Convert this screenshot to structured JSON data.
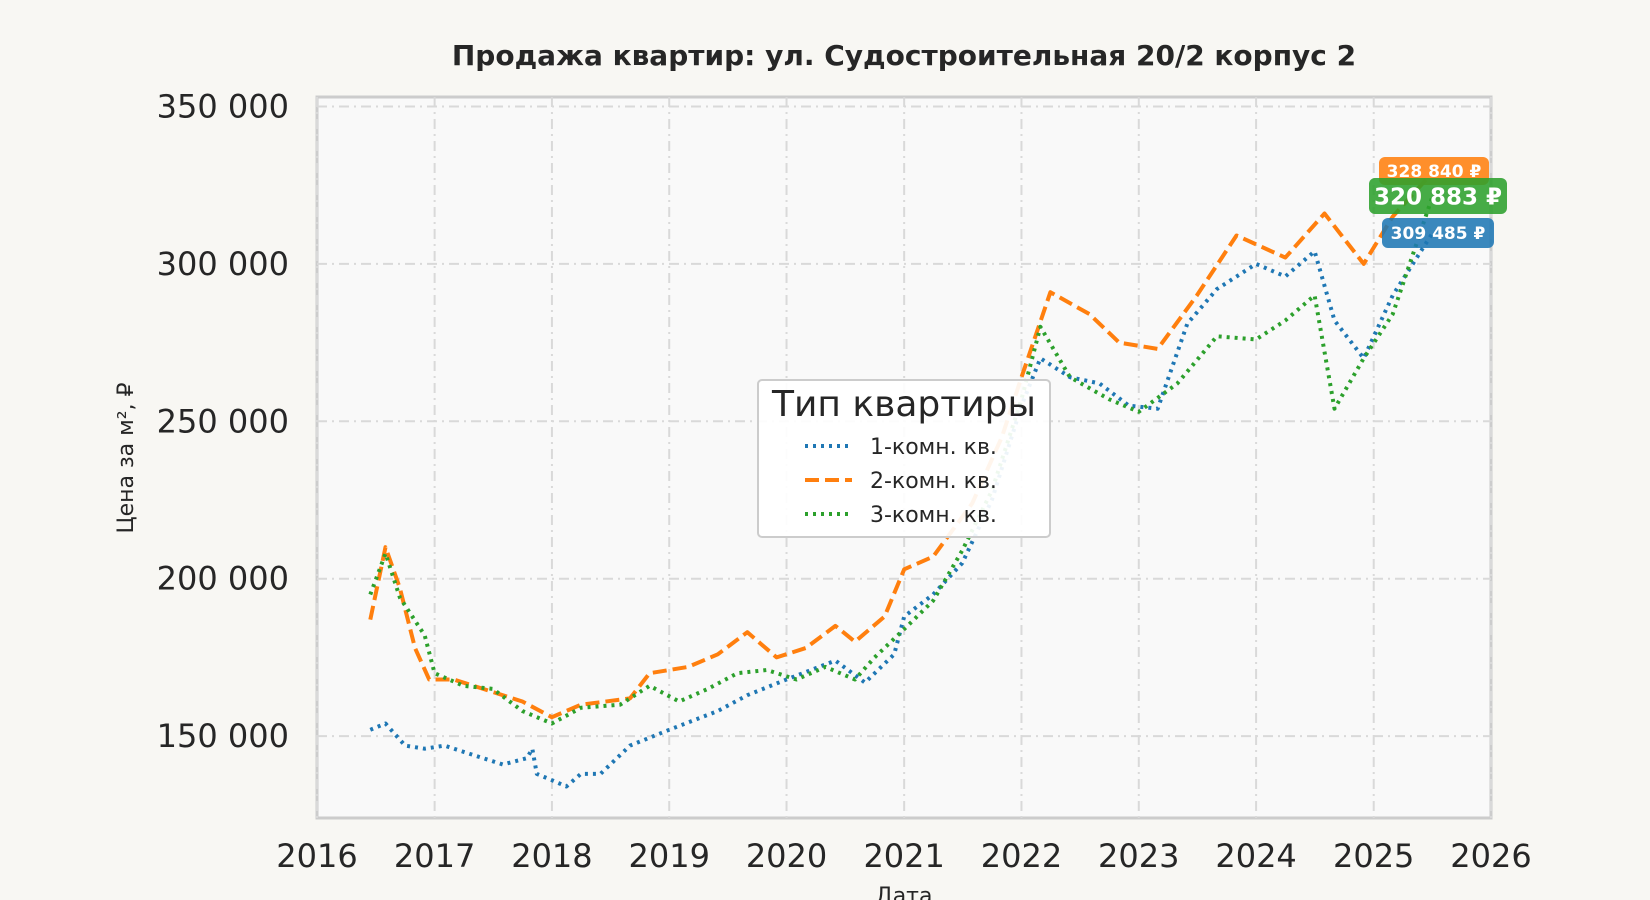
{
  "chart_data": {
    "type": "line",
    "title": "Продажа квартир: ул. Судостроительная 20/2 корпус 2",
    "xlabel": "Дата",
    "ylabel": "Цена за м², ₽",
    "xlim": [
      "2016-01-01",
      "2026-01-01"
    ],
    "ylim": [
      124000,
      353000
    ],
    "x_ticks": [
      "2016",
      "2017",
      "2018",
      "2019",
      "2020",
      "2021",
      "2022",
      "2023",
      "2024",
      "2025",
      "2026"
    ],
    "y_ticks": [
      {
        "value": 150000,
        "label": "150 000"
      },
      {
        "value": 200000,
        "label": "200 000"
      },
      {
        "value": 250000,
        "label": "250 000"
      },
      {
        "value": 300000,
        "label": "300 000"
      },
      {
        "value": 350000,
        "label": "350 000"
      }
    ],
    "grid": true,
    "legend": {
      "title": "Тип квартиры",
      "placement": "center"
    },
    "series": [
      {
        "name": "1-комн. кв.",
        "color": "#1f77b4",
        "style": "dotted",
        "points": [
          [
            "2016-06-15",
            152000
          ],
          [
            "2016-08-01",
            154000
          ],
          [
            "2016-10-01",
            147000
          ],
          [
            "2016-12-01",
            146000
          ],
          [
            "2017-02-01",
            147000
          ],
          [
            "2017-05-01",
            144000
          ],
          [
            "2017-08-01",
            141000
          ],
          [
            "2017-10-15",
            143000
          ],
          [
            "2017-11-01",
            146000
          ],
          [
            "2017-11-15",
            138000
          ],
          [
            "2018-01-01",
            136000
          ],
          [
            "2018-02-15",
            134000
          ],
          [
            "2018-04-01",
            138000
          ],
          [
            "2018-06-01",
            138000
          ],
          [
            "2018-09-01",
            147000
          ],
          [
            "2019-01-01",
            152000
          ],
          [
            "2019-06-01",
            158000
          ],
          [
            "2019-09-01",
            163000
          ],
          [
            "2020-01-01",
            168000
          ],
          [
            "2020-06-01",
            174000
          ],
          [
            "2020-09-01",
            167000
          ],
          [
            "2020-12-01",
            176000
          ],
          [
            "2021-01-01",
            188000
          ],
          [
            "2021-04-01",
            195000
          ],
          [
            "2021-07-01",
            205000
          ],
          [
            "2021-10-01",
            225000
          ],
          [
            "2022-01-01",
            255000
          ],
          [
            "2022-03-01",
            270000
          ],
          [
            "2022-06-01",
            264000
          ],
          [
            "2022-09-01",
            262000
          ],
          [
            "2022-12-01",
            255000
          ],
          [
            "2023-03-01",
            254000
          ],
          [
            "2023-06-01",
            281000
          ],
          [
            "2023-09-01",
            292000
          ],
          [
            "2024-01-01",
            300000
          ],
          [
            "2024-04-01",
            296000
          ],
          [
            "2024-07-01",
            304000
          ],
          [
            "2024-09-01",
            282000
          ],
          [
            "2024-12-01",
            270000
          ],
          [
            "2025-03-01",
            290000
          ],
          [
            "2025-07-01",
            309485
          ]
        ]
      },
      {
        "name": "2-комн. кв.",
        "color": "#ff7f0e",
        "style": "dashed",
        "points": [
          [
            "2016-06-15",
            187000
          ],
          [
            "2016-08-01",
            210000
          ],
          [
            "2016-09-15",
            197000
          ],
          [
            "2016-11-01",
            178000
          ],
          [
            "2016-12-15",
            168000
          ],
          [
            "2017-03-01",
            168000
          ],
          [
            "2017-06-01",
            165000
          ],
          [
            "2017-10-01",
            161000
          ],
          [
            "2018-01-01",
            156000
          ],
          [
            "2018-04-01",
            160000
          ],
          [
            "2018-09-01",
            162000
          ],
          [
            "2018-11-01",
            170000
          ],
          [
            "2019-03-01",
            172000
          ],
          [
            "2019-06-01",
            176000
          ],
          [
            "2019-09-01",
            183000
          ],
          [
            "2019-12-01",
            175000
          ],
          [
            "2020-03-01",
            178000
          ],
          [
            "2020-06-01",
            185000
          ],
          [
            "2020-08-01",
            180000
          ],
          [
            "2020-11-01",
            188000
          ],
          [
            "2021-01-01",
            203000
          ],
          [
            "2021-04-01",
            207000
          ],
          [
            "2021-08-01",
            224000
          ],
          [
            "2021-11-01",
            245000
          ],
          [
            "2022-01-01",
            264000
          ],
          [
            "2022-04-01",
            291000
          ],
          [
            "2022-08-01",
            284000
          ],
          [
            "2022-11-01",
            275000
          ],
          [
            "2023-03-01",
            273000
          ],
          [
            "2023-07-01",
            290000
          ],
          [
            "2023-11-01",
            309000
          ],
          [
            "2024-04-01",
            302000
          ],
          [
            "2024-08-01",
            316000
          ],
          [
            "2024-12-01",
            300000
          ],
          [
            "2025-03-01",
            315000
          ],
          [
            "2025-07-01",
            328840
          ]
        ]
      },
      {
        "name": "3-комн. кв.",
        "color": "#2ca02c",
        "style": "dotted",
        "points": [
          [
            "2016-06-15",
            195000
          ],
          [
            "2016-08-01",
            208000
          ],
          [
            "2016-09-15",
            194000
          ],
          [
            "2016-12-01",
            182000
          ],
          [
            "2017-01-01",
            170000
          ],
          [
            "2017-04-01",
            166000
          ],
          [
            "2017-07-01",
            165000
          ],
          [
            "2017-10-01",
            158000
          ],
          [
            "2018-01-01",
            154000
          ],
          [
            "2018-04-01",
            159000
          ],
          [
            "2018-08-01",
            160000
          ],
          [
            "2018-11-01",
            166000
          ],
          [
            "2019-02-01",
            161000
          ],
          [
            "2019-05-01",
            165000
          ],
          [
            "2019-08-01",
            170000
          ],
          [
            "2019-11-01",
            171000
          ],
          [
            "2020-02-01",
            168000
          ],
          [
            "2020-05-01",
            172000
          ],
          [
            "2020-08-01",
            168000
          ],
          [
            "2020-10-01",
            175000
          ],
          [
            "2021-01-01",
            184000
          ],
          [
            "2021-04-01",
            193000
          ],
          [
            "2021-07-01",
            209000
          ],
          [
            "2021-10-01",
            228000
          ],
          [
            "2022-01-01",
            257000
          ],
          [
            "2022-03-01",
            280000
          ],
          [
            "2022-06-01",
            264000
          ],
          [
            "2022-10-01",
            257000
          ],
          [
            "2023-01-01",
            253000
          ],
          [
            "2023-05-01",
            262000
          ],
          [
            "2023-09-01",
            277000
          ],
          [
            "2024-01-01",
            276000
          ],
          [
            "2024-04-01",
            282000
          ],
          [
            "2024-07-01",
            290000
          ],
          [
            "2024-09-01",
            254000
          ],
          [
            "2024-12-01",
            270000
          ],
          [
            "2025-03-01",
            284000
          ],
          [
            "2025-07-01",
            320883
          ]
        ]
      }
    ],
    "annotations": [
      {
        "text": "328 840 ₽",
        "series": "2-комн. кв.",
        "value": 328840
      },
      {
        "text": "320 883 ₽",
        "series": "3-комн. кв.",
        "value": 320883
      },
      {
        "text": "309 485 ₽",
        "series": "1-комн. кв.",
        "value": 309485
      }
    ]
  }
}
